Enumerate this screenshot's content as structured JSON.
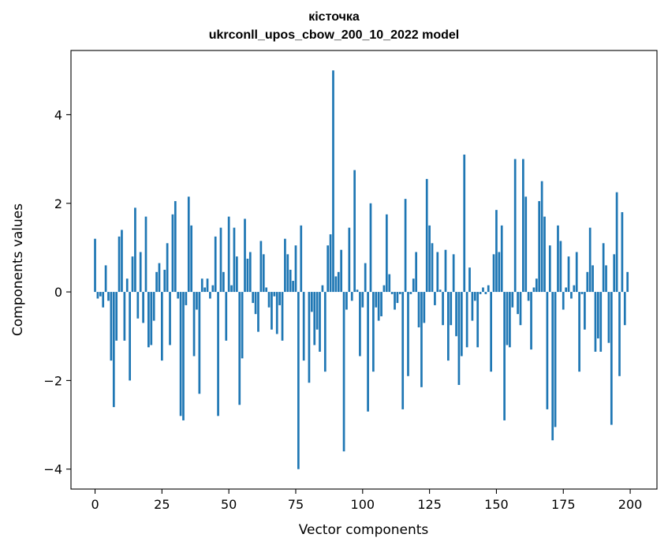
{
  "chart_data": {
    "type": "bar",
    "title": "кісточка",
    "subtitle": "ukrconll_upos_cbow_200_10_2022 model",
    "xlabel": "Vector components",
    "ylabel": "Components values",
    "xlim": [
      -9,
      210
    ],
    "ylim": [
      -4.45,
      5.45
    ],
    "xticks": [
      0,
      25,
      50,
      75,
      100,
      125,
      150,
      175,
      200
    ],
    "yticks": [
      -4,
      -2,
      0,
      2,
      4
    ],
    "xtick_labels": [
      "0",
      "25",
      "50",
      "75",
      "100",
      "125",
      "150",
      "175",
      "200"
    ],
    "ytick_labels": [
      "−4",
      "−2",
      "0",
      "2",
      "4"
    ],
    "bar_color": "#1f77b4",
    "grid": false,
    "values": [
      1.2,
      -0.15,
      -0.1,
      -0.35,
      0.6,
      -0.2,
      -1.55,
      -2.6,
      -1.1,
      1.25,
      1.4,
      -1.1,
      0.3,
      -2.0,
      0.8,
      1.9,
      -0.6,
      0.9,
      -0.7,
      1.7,
      -1.25,
      -1.2,
      -0.65,
      0.45,
      0.65,
      -1.55,
      0.5,
      1.1,
      -1.2,
      1.75,
      2.05,
      -0.15,
      -2.8,
      -2.9,
      -0.3,
      2.15,
      1.5,
      -1.45,
      -0.4,
      -2.3,
      0.3,
      0.1,
      0.3,
      -0.15,
      0.15,
      1.25,
      -2.8,
      1.45,
      0.45,
      -1.1,
      1.7,
      0.15,
      1.45,
      0.8,
      -2.55,
      -1.5,
      1.65,
      0.75,
      0.9,
      -0.25,
      -0.5,
      -0.9,
      1.15,
      0.85,
      0.1,
      -0.35,
      -0.85,
      -0.1,
      -0.95,
      -0.3,
      -1.1,
      1.2,
      0.85,
      0.5,
      0.25,
      1.05,
      -4.0,
      1.5,
      -1.55,
      0.0,
      -2.05,
      -0.45,
      -1.2,
      -0.85,
      -1.35,
      0.15,
      -1.8,
      1.05,
      1.3,
      5.0,
      0.35,
      0.45,
      0.95,
      -3.6,
      -0.4,
      1.45,
      -0.2,
      2.75,
      0.05,
      -1.45,
      -0.35,
      0.65,
      -2.7,
      2.0,
      -1.8,
      -0.35,
      -0.65,
      -0.55,
      0.15,
      1.75,
      0.4,
      -0.05,
      -0.4,
      -0.25,
      -0.05,
      -2.65,
      2.1,
      -1.9,
      -0.05,
      0.3,
      0.9,
      -0.8,
      -2.15,
      -0.7,
      2.55,
      1.5,
      1.1,
      -0.3,
      0.9,
      0.05,
      -0.75,
      0.95,
      -1.55,
      -0.75,
      0.85,
      -1.0,
      -2.1,
      -1.45,
      3.1,
      -1.25,
      0.55,
      -0.65,
      -0.2,
      -1.25,
      -0.05,
      0.1,
      -0.05,
      0.15,
      -1.8,
      0.85,
      1.85,
      0.9,
      1.5,
      -2.9,
      -1.2,
      -1.25,
      -0.35,
      3.0,
      -0.5,
      -0.75,
      3.0,
      2.15,
      -0.2,
      -1.3,
      0.1,
      0.3,
      2.05,
      2.5,
      1.7,
      -2.65,
      1.05,
      -3.35,
      -3.05,
      1.5,
      1.15,
      -0.4,
      0.1,
      0.8,
      -0.15,
      0.15,
      0.9,
      -1.8,
      -0.05,
      -0.85,
      0.45,
      1.45,
      0.6,
      -1.35,
      -1.05,
      -1.35,
      1.1,
      0.6,
      -1.15,
      -3.0,
      0.85,
      2.25,
      -1.9,
      1.8,
      -0.75,
      0.45
    ]
  }
}
